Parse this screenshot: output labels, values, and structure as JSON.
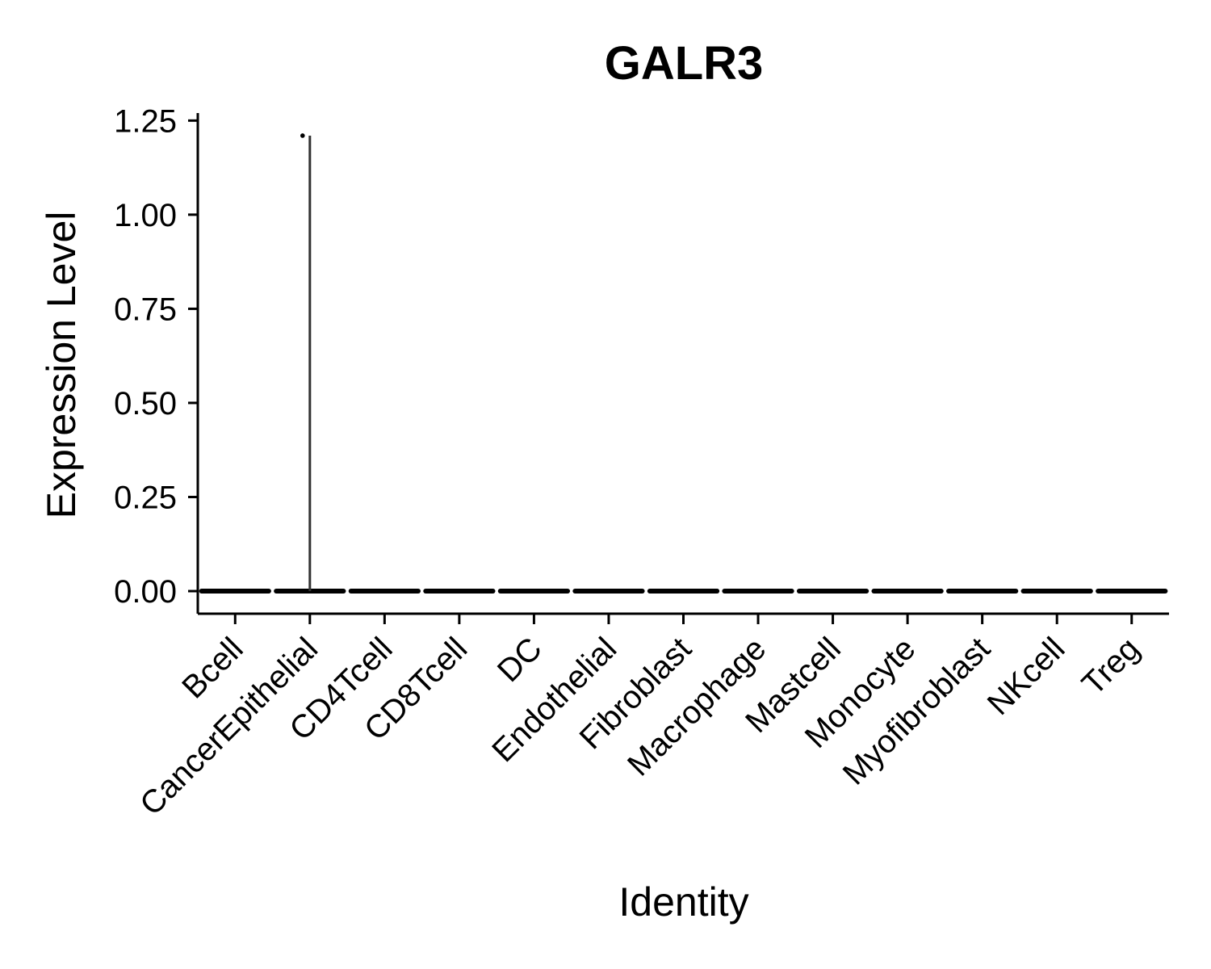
{
  "chart_data": {
    "type": "violin",
    "title": "GALR3",
    "xlabel": "Identity",
    "ylabel": "Expression Level",
    "ylim": [
      -0.06,
      1.27
    ],
    "yticks": [
      "0.00",
      "0.25",
      "0.50",
      "0.75",
      "1.00",
      "1.25"
    ],
    "ytick_values": [
      0,
      0.25,
      0.5,
      0.75,
      1.0,
      1.25
    ],
    "categories": [
      "Bcell",
      "CancerEpithelial",
      "CD4Tcell",
      "CD8Tcell",
      "DC",
      "Endothelial",
      "Fibroblast",
      "Macrophage",
      "Mastcell",
      "Monocyte",
      "Myofibroblast",
      "NKcell",
      "Treg"
    ],
    "violin_max": [
      0,
      1.21,
      0,
      0,
      0,
      0,
      0,
      0,
      0,
      0,
      0,
      0,
      0
    ],
    "outlier_points": [
      {
        "category": "CancerEpithelial",
        "value": 1.21
      }
    ],
    "color": "#000000",
    "grid": false,
    "legend": "none"
  }
}
